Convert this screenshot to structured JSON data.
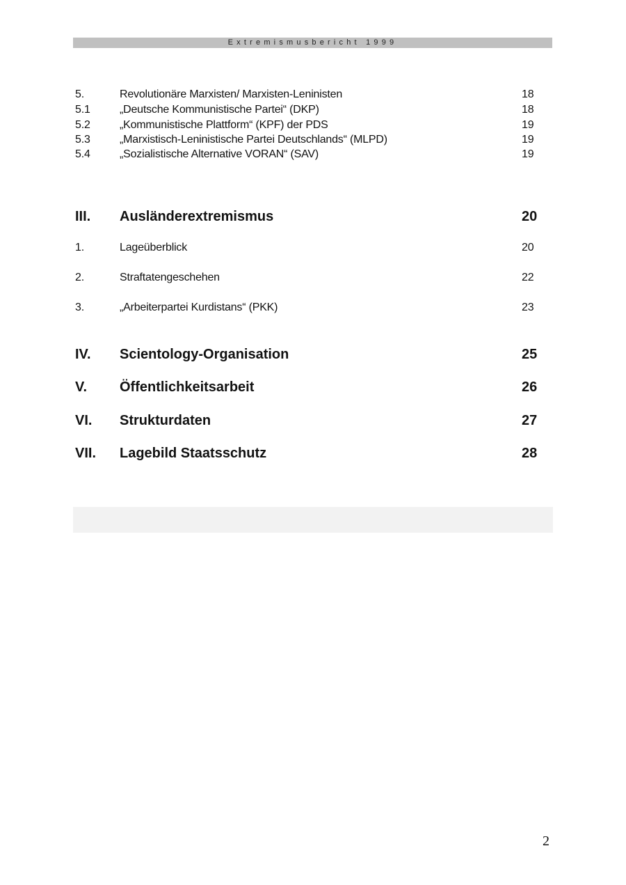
{
  "header": {
    "title": "Extremismusbericht 1999"
  },
  "toc": [
    {
      "num": "5.",
      "title": "Revolutionäre Marxisten/ Marxisten-Leninisten",
      "page": "18",
      "level": "sub"
    },
    {
      "num": "5.1",
      "title": "„Deutsche Kommunistische Partei“ (DKP)",
      "page": "18",
      "level": "sub"
    },
    {
      "num": "5.2",
      "title": "„Kommunistische Plattform“ (KPF) der PDS",
      "page": "19",
      "level": "sub"
    },
    {
      "num": "5.3",
      "title": "„Marxistisch-Leninistische Partei Deutschlands“ (MLPD)",
      "page": "19",
      "level": "sub"
    },
    {
      "num": "5.4",
      "title": "„Sozialistische Alternative VORAN“ (SAV)",
      "page": "19",
      "level": "sub"
    },
    {
      "num": "III.",
      "title": "Ausländerextremismus",
      "page": "20",
      "level": "chapter"
    },
    {
      "num": "1.",
      "title": "Lageüberblick",
      "page": "20",
      "level": "sub"
    },
    {
      "num": "2.",
      "title": "Straftatengeschehen",
      "page": "22",
      "level": "sub"
    },
    {
      "num": "3.",
      "title": "„Arbeiterpartei Kurdistans“ (PKK)",
      "page": "23",
      "level": "sub"
    },
    {
      "num": "IV.",
      "title": "Scientology-Organisation",
      "page": "25",
      "level": "chapter"
    },
    {
      "num": "V.",
      "title": "Öffentlichkeitsarbeit",
      "page": "26",
      "level": "chapter"
    },
    {
      "num": "VI.",
      "title": "Strukturdaten",
      "page": "27",
      "level": "chapter"
    },
    {
      "num": "VII.",
      "title": "Lagebild Staatsschutz",
      "page": "28",
      "level": "chapter"
    }
  ],
  "footer": {
    "page_number": "2"
  }
}
